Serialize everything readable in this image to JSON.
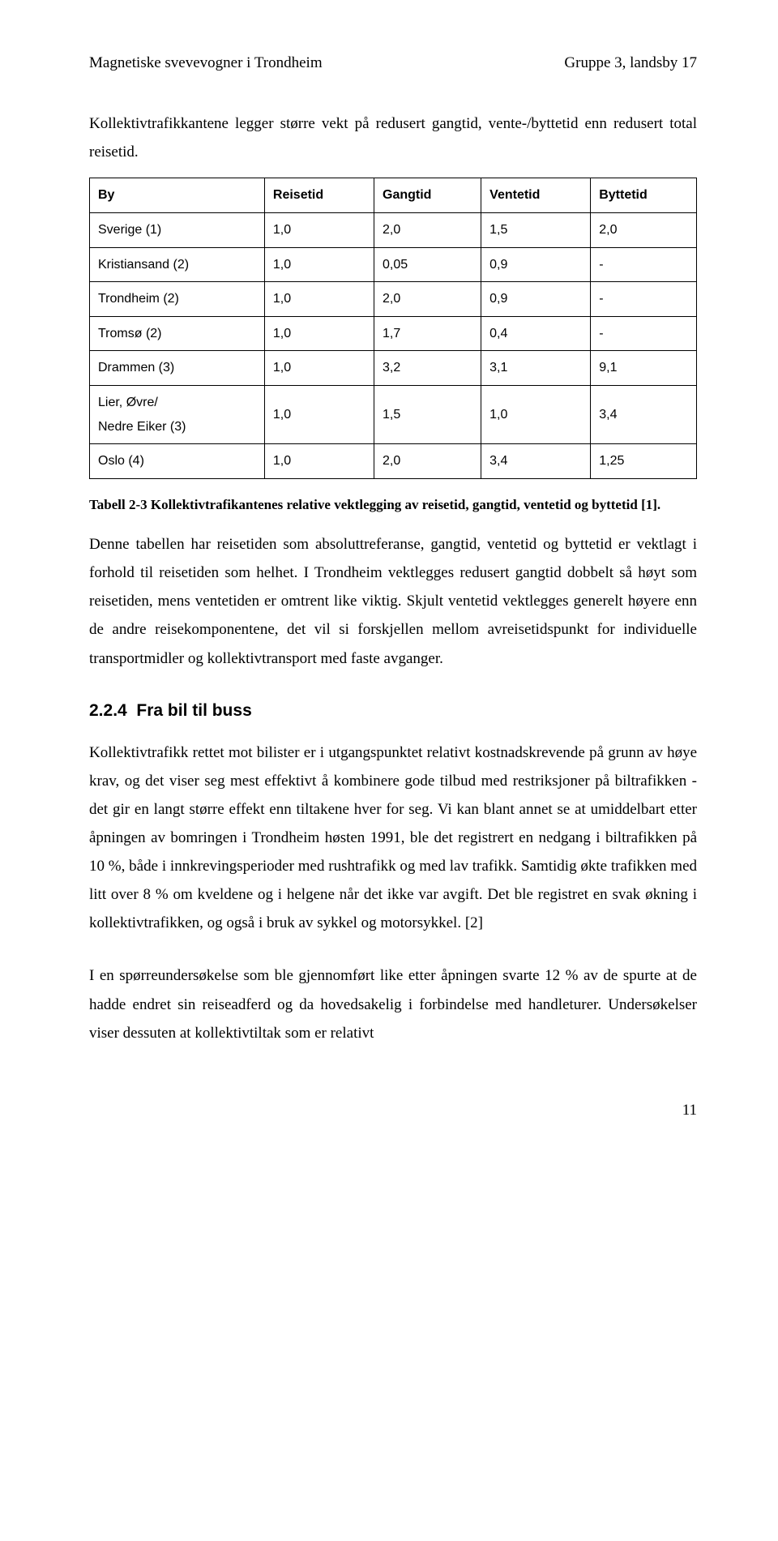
{
  "header": {
    "left": "Magnetiske svevevogner i Trondheim",
    "right": "Gruppe 3, landsby 17"
  },
  "intro": "Kollektivtrafikkantene legger større vekt på redusert gangtid, vente-/byttetid enn redusert total reisetid.",
  "table": {
    "columns": [
      "By",
      "Reisetid",
      "Gangtid",
      "Ventetid",
      "Byttetid"
    ],
    "rows": [
      [
        "Sverige (1)",
        "1,0",
        "2,0",
        "1,5",
        "2,0"
      ],
      [
        "Kristiansand (2)",
        "1,0",
        "0,05",
        "0,9",
        "-"
      ],
      [
        "Trondheim (2)",
        "1,0",
        "2,0",
        "0,9",
        "-"
      ],
      [
        "Tromsø (2)",
        "1,0",
        "1,7",
        "0,4",
        "-"
      ],
      [
        "Drammen (3)",
        "1,0",
        "3,2",
        "3,1",
        "9,1"
      ],
      [
        "Lier, Øvre/\nNedre Eiker (3)",
        "1,0",
        "1,5",
        "1,0",
        "3,4"
      ],
      [
        "Oslo (4)",
        "1,0",
        "2,0",
        "3,4",
        "1,25"
      ]
    ],
    "font_family": "Arial",
    "font_size": 16,
    "border_color": "#000000"
  },
  "caption": "Tabell 2-3 Kollektivtrafikantenes relative vektlegging av reisetid, gangtid, ventetid og byttetid [1].",
  "para2": "Denne tabellen har reisetiden som absoluttreferanse, gangtid, ventetid og byttetid er vektlagt i forhold til reisetiden som helhet. I Trondheim vektlegges redusert gangtid dobbelt så høyt som reisetiden, mens ventetiden er omtrent like viktig. Skjult ventetid vektlegges generelt høyere enn de andre reisekomponentene, det vil si forskjellen mellom avreisetidspunkt for individuelle transportmidler og kollektivtransport med faste avganger.",
  "section": {
    "number": "2.2.4",
    "title": "Fra bil til buss"
  },
  "para3": "Kollektivtrafikk rettet mot bilister er i utgangspunktet relativt kostnadskrevende på grunn av høye krav, og det viser seg mest effektivt å kombinere gode tilbud med restriksjoner på biltrafikken - det gir en langt større effekt enn tiltakene hver for seg. Vi kan blant annet se at umiddelbart etter åpningen av bomringen i Trondheim høsten 1991, ble det registrert en nedgang i biltrafikken på 10 %, både i innkrevingsperioder med rushtrafikk og med lav trafikk. Samtidig økte trafikken med litt over 8 % om kveldene og i helgene når det ikke var avgift. Det ble registret en svak økning i kollektivtrafikken, og også i bruk av sykkel og motorsykkel. [2]",
  "para4": "I en spørreundersøkelse som ble gjennomført like etter åpningen svarte 12 % av de spurte at de hadde endret sin reiseadferd og da hovedsakelig i forbindelse med handleturer. Undersøkelser viser dessuten at kollektivtiltak som er relativt",
  "page_number": "11",
  "colors": {
    "text": "#000000",
    "background": "#ffffff"
  }
}
